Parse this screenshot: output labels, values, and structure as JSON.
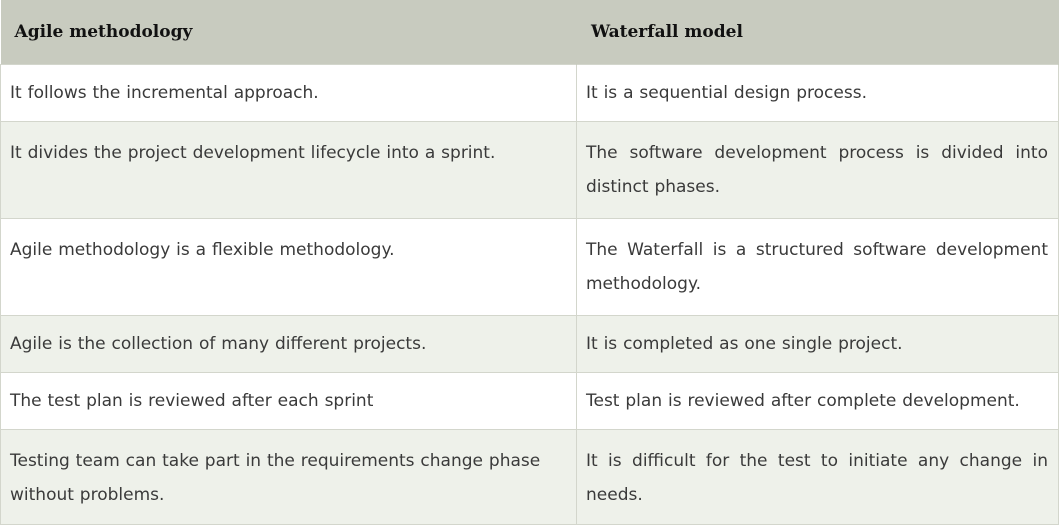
{
  "table": {
    "headers": [
      "Agile methodology",
      "Waterfall model"
    ],
    "rows": [
      [
        "It follows the incremental approach.",
        "It is a sequential design process."
      ],
      [
        "It divides the project development lifecycle into a sprint.",
        "The software development process is divided into distinct phases."
      ],
      [
        "Agile methodology is a flexible methodology.",
        "The Waterfall is a structured software development methodology."
      ],
      [
        "Agile is the collection of many different projects.",
        "It is completed as one single project."
      ],
      [
        "The test plan is reviewed after each sprint",
        "Test plan is reviewed after complete development."
      ],
      [
        "Testing team can take part in the requirements change phase without problems.",
        "It is difficult for the test to initiate any change in needs."
      ]
    ]
  },
  "colors": {
    "header_bg": "#c8cbbf",
    "row_alt_bg": "#eef1ea",
    "border": "#d3d6cc"
  }
}
